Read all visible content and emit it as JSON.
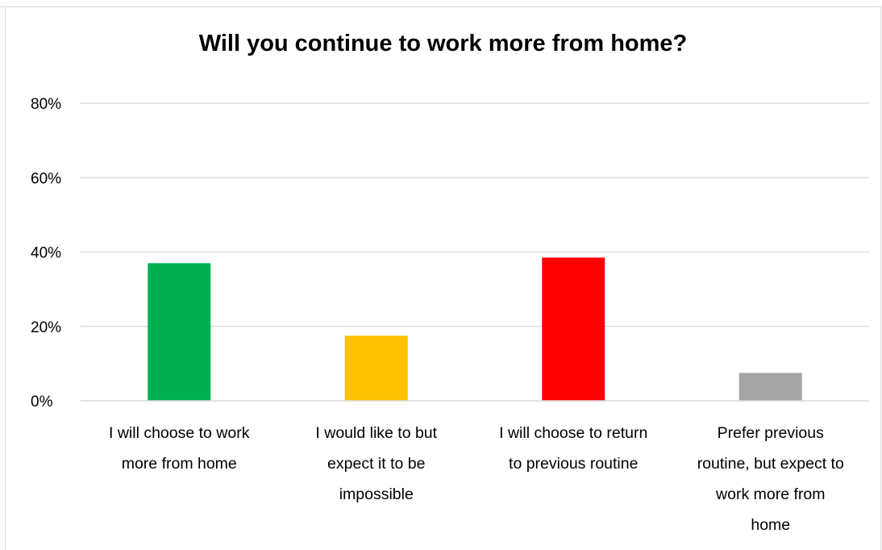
{
  "chart_data": {
    "type": "bar",
    "title": "Will you continue to work more from home?",
    "xlabel": "",
    "ylabel": "",
    "ylim": [
      0,
      80
    ],
    "yticks": [
      "0%",
      "20%",
      "40%",
      "60%",
      "80%"
    ],
    "ytick_values": [
      0,
      20,
      40,
      60,
      80
    ],
    "grid": true,
    "legend": "none",
    "categories": [
      [
        "I will choose to work",
        "more from home"
      ],
      [
        "I would like to but",
        "expect it to be",
        "impossible"
      ],
      [
        "I will choose to return",
        "to previous routine"
      ],
      [
        "Prefer previous",
        "routine, but expect to",
        "work more from",
        "home"
      ]
    ],
    "values": [
      37,
      17.5,
      38.5,
      7.5
    ],
    "colors": [
      "#00b050",
      "#ffc000",
      "#ff0000",
      "#a5a5a5"
    ]
  }
}
